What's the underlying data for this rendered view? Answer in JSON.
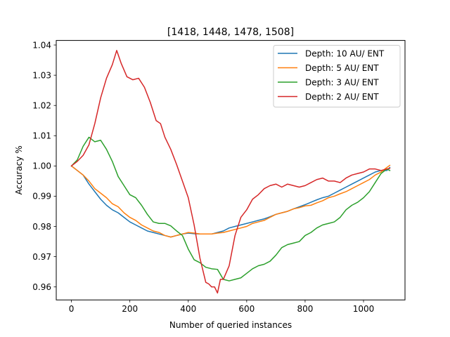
{
  "chart_data": {
    "type": "line",
    "title": "[1418, 1448, 1478, 1508]",
    "xlabel": "Number of queried instances",
    "ylabel": "Accuracy %",
    "xlim": [
      -52,
      1142
    ],
    "ylim": [
      0.9557,
      1.0415
    ],
    "xticks": [
      0,
      200,
      400,
      600,
      800,
      1000
    ],
    "xtick_labels": [
      "0",
      "200",
      "400",
      "600",
      "800",
      "1000"
    ],
    "yticks": [
      0.96,
      0.97,
      0.98,
      0.99,
      1.0,
      1.01,
      1.02,
      1.03,
      1.04
    ],
    "ytick_labels": [
      "0.96",
      "0.97",
      "0.98",
      "0.99",
      "1.00",
      "1.01",
      "1.02",
      "1.03",
      "1.04"
    ],
    "grid": false,
    "legend_position": "top-right",
    "series": [
      {
        "name": "Depth: 10 AU/ ENT",
        "color": "#1f77b4",
        "x": [
          0,
          20,
          40,
          60,
          80,
          100,
          120,
          140,
          160,
          180,
          200,
          220,
          240,
          260,
          280,
          300,
          320,
          340,
          360,
          380,
          400,
          420,
          440,
          460,
          480,
          500,
          520,
          540,
          560,
          580,
          600,
          620,
          640,
          660,
          680,
          700,
          720,
          740,
          760,
          780,
          800,
          820,
          840,
          860,
          880,
          900,
          920,
          940,
          960,
          980,
          1000,
          1020,
          1040,
          1060,
          1080,
          1090
        ],
        "y": [
          1.0,
          0.9985,
          0.997,
          0.994,
          0.9915,
          0.989,
          0.987,
          0.9855,
          0.9845,
          0.983,
          0.9815,
          0.9805,
          0.9795,
          0.9785,
          0.978,
          0.9775,
          0.977,
          0.9765,
          0.977,
          0.9775,
          0.9778,
          0.9776,
          0.9775,
          0.9775,
          0.9775,
          0.978,
          0.9785,
          0.9795,
          0.98,
          0.9805,
          0.981,
          0.9815,
          0.982,
          0.9825,
          0.9832,
          0.984,
          0.9845,
          0.985,
          0.9858,
          0.9865,
          0.9872,
          0.988,
          0.9888,
          0.9895,
          0.99,
          0.991,
          0.992,
          0.993,
          0.994,
          0.995,
          0.996,
          0.997,
          0.998,
          0.9985,
          0.9985,
          0.9995
        ]
      },
      {
        "name": "Depth: 5 AU/ ENT",
        "color": "#ff7f0e",
        "x": [
          0,
          20,
          40,
          60,
          80,
          100,
          120,
          140,
          160,
          180,
          200,
          220,
          240,
          260,
          280,
          300,
          320,
          340,
          360,
          380,
          400,
          420,
          440,
          460,
          480,
          500,
          520,
          540,
          560,
          580,
          600,
          620,
          640,
          660,
          680,
          700,
          720,
          740,
          760,
          780,
          800,
          820,
          840,
          860,
          880,
          900,
          920,
          940,
          960,
          980,
          1000,
          1020,
          1040,
          1060,
          1080,
          1090
        ],
        "y": [
          1.0,
          0.9985,
          0.997,
          0.995,
          0.9925,
          0.991,
          0.9895,
          0.9875,
          0.9865,
          0.9845,
          0.983,
          0.982,
          0.9805,
          0.9795,
          0.9785,
          0.978,
          0.977,
          0.9765,
          0.977,
          0.9775,
          0.978,
          0.9778,
          0.9775,
          0.9775,
          0.9775,
          0.9778,
          0.978,
          0.9785,
          0.979,
          0.9795,
          0.98,
          0.981,
          0.9815,
          0.982,
          0.983,
          0.984,
          0.9845,
          0.985,
          0.9858,
          0.9862,
          0.9868,
          0.987,
          0.9878,
          0.9885,
          0.9895,
          0.99,
          0.9908,
          0.9915,
          0.9925,
          0.9935,
          0.9945,
          0.9955,
          0.997,
          0.998,
          0.9995,
          1.0002
        ]
      },
      {
        "name": "Depth: 3 AU/ ENT",
        "color": "#2ca02c",
        "x": [
          0,
          20,
          40,
          60,
          80,
          100,
          120,
          140,
          160,
          180,
          200,
          220,
          240,
          260,
          280,
          300,
          320,
          340,
          360,
          380,
          400,
          420,
          440,
          460,
          480,
          500,
          520,
          540,
          560,
          580,
          600,
          620,
          640,
          660,
          680,
          700,
          720,
          740,
          760,
          780,
          800,
          820,
          840,
          860,
          880,
          900,
          920,
          940,
          960,
          980,
          1000,
          1020,
          1040,
          1060,
          1080,
          1090
        ],
        "y": [
          1.0,
          1.002,
          1.0065,
          1.0095,
          1.008,
          1.0085,
          1.0055,
          1.0015,
          0.9965,
          0.9935,
          0.9905,
          0.9895,
          0.987,
          0.984,
          0.9815,
          0.981,
          0.981,
          0.9802,
          0.9785,
          0.977,
          0.9725,
          0.969,
          0.968,
          0.9665,
          0.966,
          0.9658,
          0.9625,
          0.962,
          0.9625,
          0.963,
          0.9645,
          0.966,
          0.967,
          0.9675,
          0.9685,
          0.9705,
          0.973,
          0.974,
          0.9745,
          0.975,
          0.977,
          0.978,
          0.9795,
          0.9805,
          0.981,
          0.9815,
          0.983,
          0.9855,
          0.987,
          0.988,
          0.9895,
          0.9915,
          0.9945,
          0.9975,
          0.999,
          0.9985
        ]
      },
      {
        "name": "Depth: 2 AU/ ENT",
        "color": "#d62728",
        "x": [
          0,
          20,
          40,
          60,
          80,
          100,
          120,
          140,
          155,
          170,
          190,
          210,
          230,
          250,
          270,
          290,
          305,
          320,
          340,
          360,
          380,
          400,
          420,
          440,
          460,
          470,
          480,
          490,
          500,
          510,
          520,
          540,
          560,
          580,
          600,
          620,
          640,
          660,
          680,
          700,
          720,
          740,
          760,
          780,
          800,
          820,
          840,
          860,
          880,
          900,
          920,
          940,
          960,
          980,
          1000,
          1020,
          1040,
          1060,
          1080,
          1090
        ],
        "y": [
          1.0,
          1.0015,
          1.0035,
          1.007,
          1.014,
          1.0225,
          1.029,
          1.0335,
          1.0382,
          1.034,
          1.0295,
          1.0285,
          1.029,
          1.026,
          1.021,
          1.015,
          1.014,
          1.0095,
          1.0055,
          1.0005,
          0.995,
          0.9895,
          0.9805,
          0.9695,
          0.9615,
          0.961,
          0.96,
          0.96,
          0.958,
          0.9625,
          0.9625,
          0.967,
          0.977,
          0.983,
          0.9855,
          0.989,
          0.9905,
          0.9925,
          0.9935,
          0.994,
          0.993,
          0.994,
          0.9935,
          0.993,
          0.9935,
          0.9945,
          0.9955,
          0.996,
          0.995,
          0.995,
          0.9945,
          0.996,
          0.997,
          0.9975,
          0.998,
          0.999,
          0.999,
          0.9985,
          0.999,
          0.9992
        ]
      }
    ]
  }
}
